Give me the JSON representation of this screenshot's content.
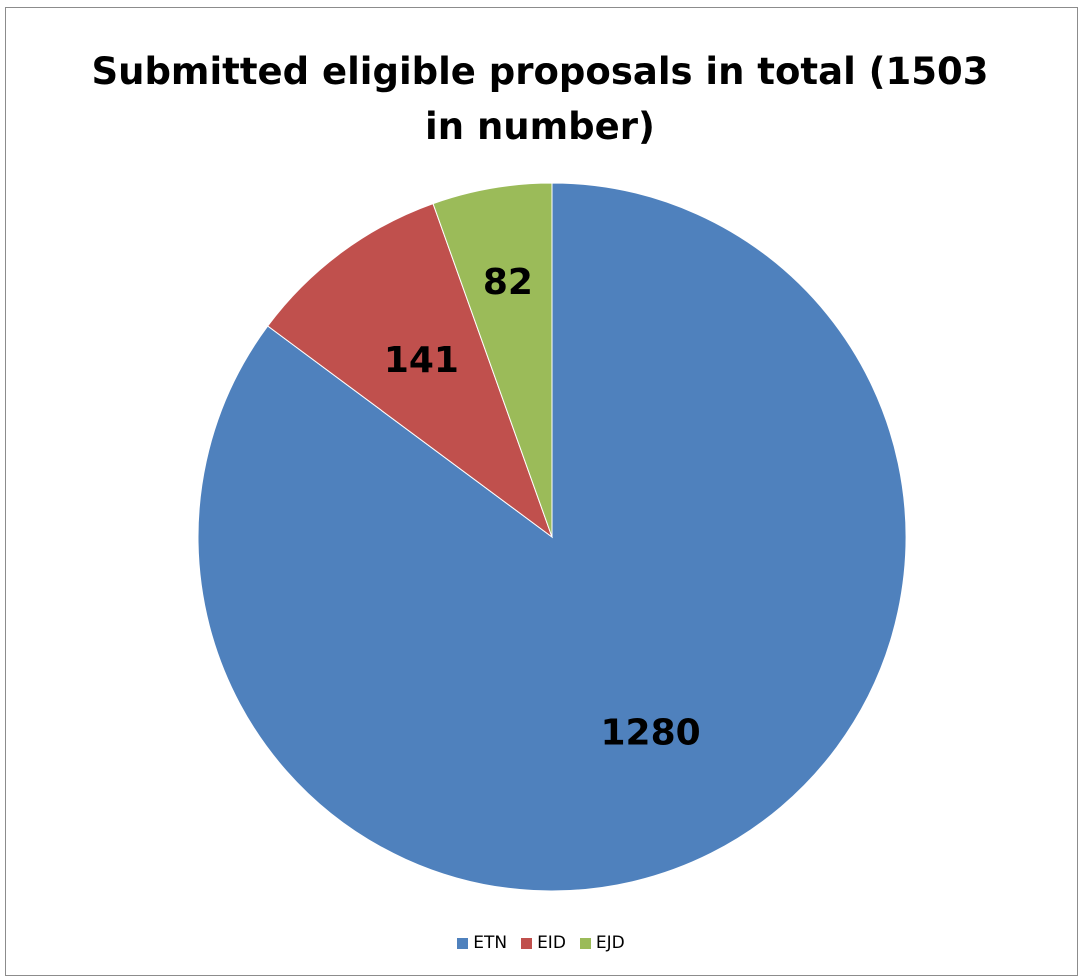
{
  "chart_data": {
    "type": "pie",
    "title": "Submitted eligible proposals in total (1503 in number)",
    "categories": [
      "ETN",
      "EID",
      "EJD"
    ],
    "values": [
      1280,
      141,
      82
    ],
    "colors": [
      "#4F81BD",
      "#C0504D",
      "#9BBB59"
    ],
    "data_labels": [
      "1280",
      "141",
      "82"
    ],
    "legend_position": "bottom",
    "start_angle": "12 o'clock",
    "direction": "clockwise"
  }
}
